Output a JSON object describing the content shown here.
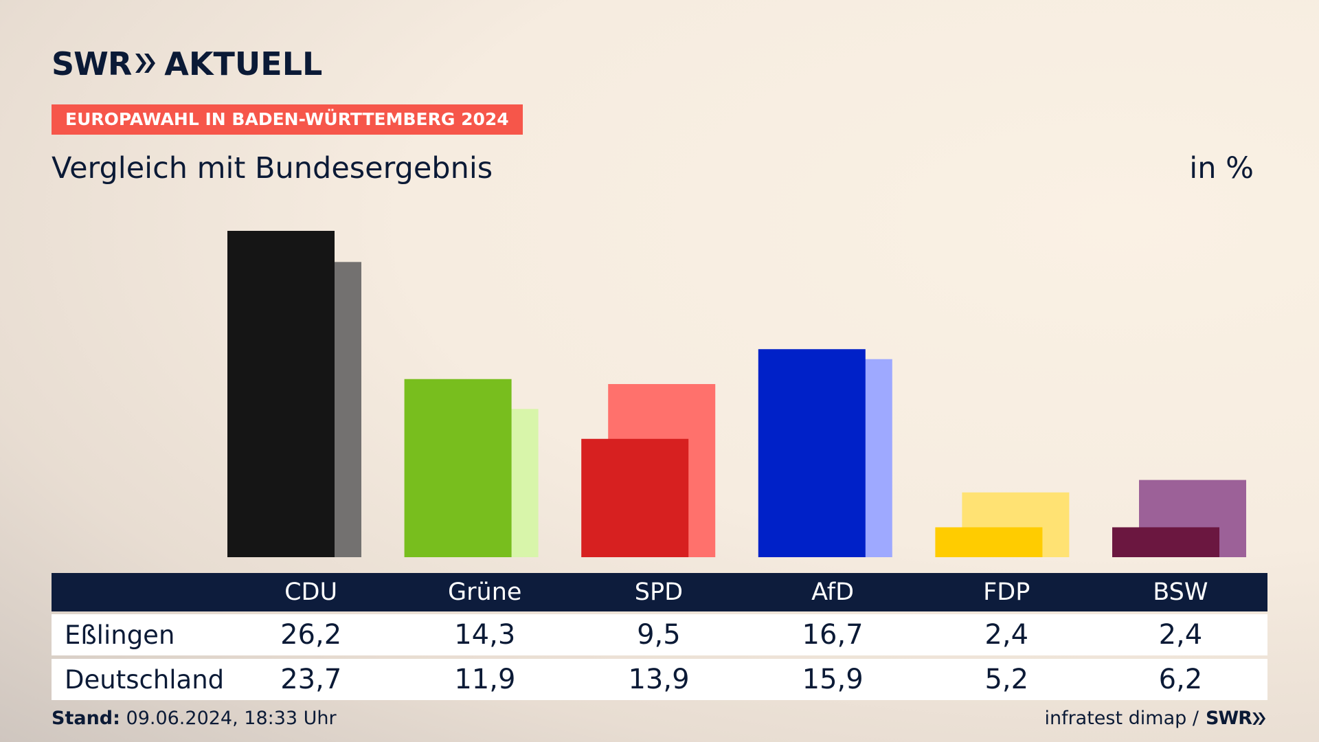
{
  "brand": {
    "logo_primary": "SWR",
    "logo_secondary": "AKTUELL"
  },
  "badge": "EUROPAWAHL IN BADEN-WÜRTTEMBERG 2024",
  "subtitle": "Vergleich mit Bundesergebnis",
  "unit": "in %",
  "table": {
    "parties": [
      "CDU",
      "Grüne",
      "SPD",
      "AfD",
      "FDP",
      "BSW"
    ],
    "rows": [
      {
        "label": "Eßlingen",
        "values": [
          "26,2",
          "14,3",
          "9,5",
          "16,7",
          "2,4",
          "2,4"
        ]
      },
      {
        "label": "Deutschland",
        "values": [
          "23,7",
          "11,9",
          "13,9",
          "15,9",
          "5,2",
          "6,2"
        ]
      }
    ]
  },
  "chart_data": {
    "type": "bar",
    "categories": [
      "CDU",
      "Grüne",
      "SPD",
      "AfD",
      "FDP",
      "BSW"
    ],
    "series": [
      {
        "name": "Eßlingen",
        "values": [
          26.2,
          14.3,
          9.5,
          16.7,
          2.4,
          2.4
        ],
        "colors": [
          "#151515",
          "#78be1e",
          "#d72020",
          "#0021c8",
          "#ffcc00",
          "#6b1740"
        ]
      },
      {
        "name": "Deutschland",
        "values": [
          23.7,
          11.9,
          13.9,
          15.9,
          5.2,
          6.2
        ],
        "colors": [
          "#737170",
          "#d8f5aa",
          "#ff716c",
          "#9ea9ff",
          "#ffe273",
          "#9c6198"
        ]
      }
    ],
    "ylim": [
      0,
      26.2
    ]
  },
  "footer": {
    "stand_label": "Stand:",
    "stand_value": "09.06.2024, 18:33 Uhr",
    "source": "infratest dimap /",
    "source_logo": "SWR"
  }
}
